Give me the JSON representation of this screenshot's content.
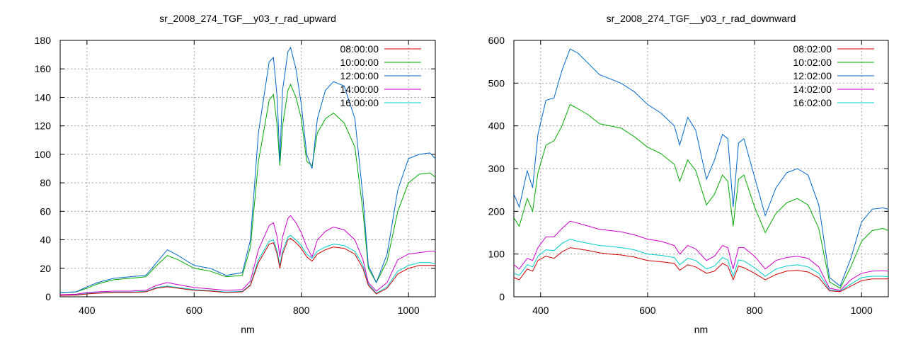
{
  "chart_data": [
    {
      "type": "line",
      "title": "sr_2008_274_TGF__y03_r_rad_upward",
      "xlabel": "nm",
      "ylabel": "",
      "xlim": [
        350,
        1050
      ],
      "ylim": [
        0,
        180
      ],
      "xticks": [
        400,
        600,
        800,
        1000
      ],
      "yticks": [
        0,
        20,
        40,
        60,
        80,
        100,
        120,
        140,
        160,
        180
      ],
      "grid": true,
      "legend_position": "top-right",
      "x": [
        350,
        380,
        400,
        420,
        450,
        480,
        510,
        530,
        550,
        570,
        600,
        630,
        660,
        690,
        705,
        720,
        740,
        748,
        755,
        760,
        765,
        775,
        780,
        790,
        800,
        810,
        820,
        830,
        845,
        860,
        880,
        900,
        915,
        925,
        940,
        960,
        980,
        1000,
        1020,
        1040,
        1050
      ],
      "series": [
        {
          "name": "08:00:00",
          "color": "#cc0000",
          "values": [
            1,
            1.2,
            2,
            2.5,
            3,
            3,
            3.5,
            6,
            7,
            6,
            4.5,
            4,
            3,
            3.5,
            8,
            24,
            37,
            38,
            30,
            20,
            30,
            40,
            41,
            38,
            34,
            28,
            25,
            30,
            33,
            35,
            34,
            30,
            20,
            8,
            2,
            6,
            16,
            20,
            22,
            22,
            22
          ]
        },
        {
          "name": "10:00:00",
          "color": "#00aa00",
          "values": [
            3,
            3.5,
            6,
            9,
            12,
            13,
            14,
            22,
            29,
            26,
            20,
            18,
            14,
            15,
            35,
            95,
            138,
            142,
            120,
            92,
            120,
            145,
            149,
            140,
            125,
            95,
            92,
            115,
            125,
            129,
            122,
            105,
            60,
            20,
            10,
            25,
            60,
            80,
            86,
            87,
            84
          ]
        },
        {
          "name": "12:00:00",
          "color": "#0066cc",
          "values": [
            3,
            3.5,
            7,
            10,
            13,
            14,
            15,
            24,
            33,
            29,
            22,
            20,
            15,
            17,
            40,
            115,
            165,
            168,
            140,
            95,
            145,
            172,
            175,
            160,
            135,
            100,
            90,
            125,
            145,
            151,
            148,
            125,
            70,
            22,
            10,
            30,
            75,
            97,
            100,
            101,
            97
          ]
        },
        {
          "name": "14:00:00",
          "color": "#cc00cc",
          "values": [
            1.5,
            1.8,
            3,
            3.5,
            4,
            4,
            4.5,
            8,
            10,
            8.5,
            6.5,
            5.5,
            4.5,
            5,
            11,
            33,
            50,
            52,
            42,
            28,
            42,
            55,
            57,
            52,
            45,
            35,
            28,
            40,
            46,
            49,
            47,
            40,
            26,
            10,
            4,
            10,
            26,
            30,
            31,
            32,
            32
          ]
        },
        {
          "name": "16:00:00",
          "color": "#00cccc",
          "values": [
            1.2,
            1.4,
            2.3,
            2.8,
            3.3,
            3.3,
            3.8,
            6.5,
            7.5,
            6.5,
            5,
            4.4,
            3.4,
            3.8,
            8.5,
            26,
            39,
            40,
            32,
            22,
            32,
            42,
            43,
            40,
            36,
            30,
            27,
            32,
            35,
            37,
            36,
            32,
            22,
            9,
            2.5,
            7,
            18,
            22,
            24,
            24,
            23
          ]
        }
      ]
    },
    {
      "type": "line",
      "title": "sr_2008_274_TGF__y03_r_rad_downward",
      "xlabel": "nm",
      "ylabel": "",
      "xlim": [
        350,
        1050
      ],
      "ylim": [
        0,
        600
      ],
      "xticks": [
        400,
        600,
        800,
        1000
      ],
      "yticks": [
        0,
        100,
        200,
        300,
        400,
        500,
        600
      ],
      "grid": true,
      "legend_position": "top-right",
      "x": [
        350,
        360,
        375,
        385,
        395,
        410,
        425,
        440,
        455,
        470,
        490,
        510,
        530,
        550,
        575,
        600,
        625,
        650,
        660,
        675,
        690,
        710,
        725,
        740,
        750,
        760,
        770,
        780,
        800,
        820,
        840,
        860,
        880,
        900,
        920,
        940,
        960,
        980,
        1000,
        1020,
        1040,
        1050
      ],
      "series": [
        {
          "name": "08:02:00",
          "color": "#cc0000",
          "values": [
            45,
            40,
            65,
            60,
            85,
            95,
            90,
            105,
            115,
            112,
            108,
            103,
            100,
            98,
            93,
            85,
            82,
            78,
            62,
            75,
            70,
            55,
            60,
            78,
            72,
            40,
            72,
            68,
            55,
            40,
            52,
            60,
            62,
            58,
            45,
            14,
            12,
            25,
            38,
            42,
            42,
            42
          ]
        },
        {
          "name": "10:02:00",
          "color": "#00aa00",
          "values": [
            185,
            165,
            230,
            200,
            290,
            355,
            365,
            400,
            450,
            440,
            425,
            405,
            400,
            395,
            375,
            350,
            335,
            310,
            270,
            320,
            295,
            215,
            240,
            285,
            270,
            165,
            275,
            285,
            210,
            150,
            195,
            220,
            230,
            215,
            160,
            35,
            20,
            70,
            130,
            155,
            160,
            155
          ]
        },
        {
          "name": "12:02:00",
          "color": "#0066cc",
          "values": [
            240,
            210,
            295,
            255,
            380,
            460,
            465,
            530,
            580,
            570,
            545,
            520,
            510,
            500,
            480,
            450,
            430,
            400,
            355,
            420,
            390,
            275,
            320,
            380,
            370,
            210,
            360,
            370,
            280,
            190,
            255,
            290,
            300,
            285,
            215,
            45,
            25,
            90,
            175,
            205,
            208,
            205
          ]
        },
        {
          "name": "14:02:00",
          "color": "#cc00cc",
          "values": [
            75,
            65,
            90,
            85,
            115,
            140,
            140,
            160,
            177,
            172,
            165,
            158,
            155,
            152,
            145,
            135,
            130,
            120,
            100,
            120,
            112,
            85,
            95,
            120,
            115,
            65,
            115,
            115,
            95,
            65,
            85,
            92,
            95,
            90,
            70,
            20,
            15,
            40,
            55,
            60,
            61,
            60
          ]
        },
        {
          "name": "16:02:00",
          "color": "#00cccc",
          "values": [
            55,
            50,
            75,
            70,
            95,
            110,
            108,
            125,
            135,
            130,
            125,
            120,
            118,
            115,
            110,
            100,
            97,
            92,
            75,
            90,
            85,
            65,
            72,
            92,
            86,
            48,
            86,
            84,
            68,
            48,
            65,
            72,
            75,
            70,
            55,
            16,
            13,
            30,
            45,
            48,
            48,
            47
          ]
        }
      ]
    }
  ]
}
